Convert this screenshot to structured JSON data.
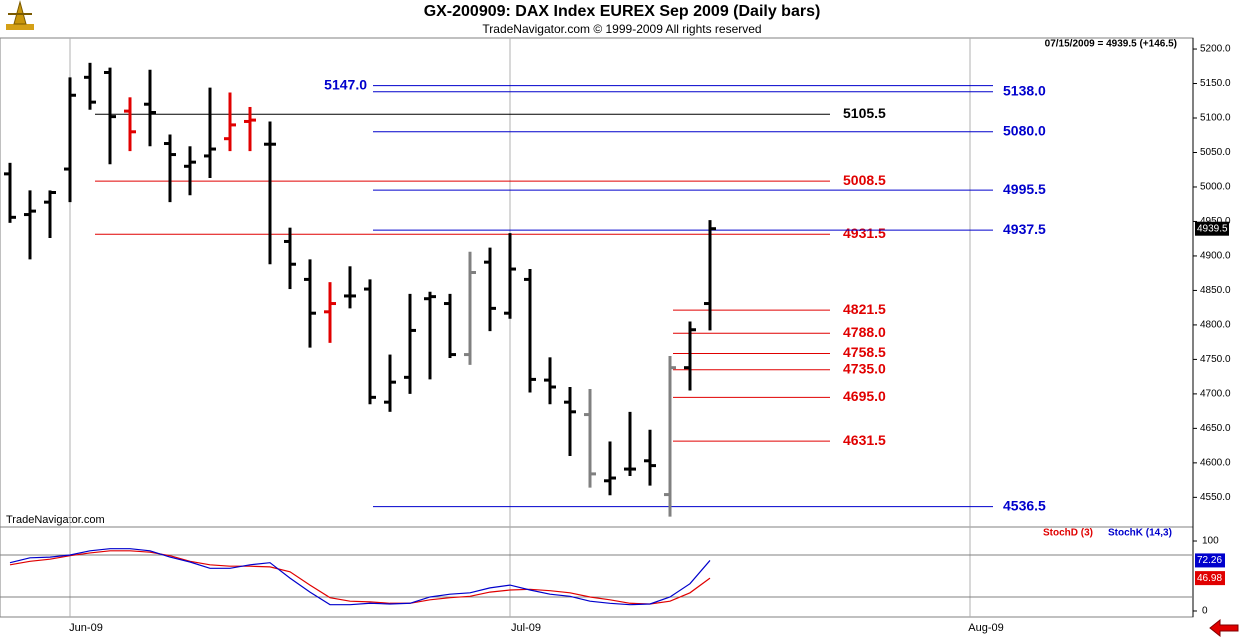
{
  "chart_data": [
    {
      "type": "ohlc",
      "title": "GX-200909:  DAX Index EUREX Sep 2009  (Daily bars)",
      "subtitle": "TradeNavigator.com © 1999-2009 All rights reserved",
      "header": "07/15/2009 = 4939.5 (+146.5)",
      "watermark": "TradeNavigator.com",
      "categories": [
        null,
        null,
        null,
        "Jun-09",
        null,
        null,
        null,
        null,
        null,
        null,
        null,
        null,
        null,
        null,
        null,
        null,
        null,
        null,
        null,
        null,
        null,
        null,
        null,
        null,
        null,
        "Jul-09",
        null,
        null,
        null,
        null,
        null,
        null,
        null,
        null,
        null,
        null,
        null,
        null,
        null,
        null,
        null,
        null,
        null,
        null,
        null,
        null,
        null,
        null,
        "Aug-09"
      ],
      "open": [
        5019,
        4960,
        4978,
        5026,
        5159,
        5166,
        5110,
        5120,
        5063,
        5030,
        5045,
        5070,
        5095,
        5062,
        4921,
        4866,
        4819,
        4842,
        4852,
        4688,
        4724,
        4838,
        4831,
        4757,
        4891,
        4817,
        4866,
        4720,
        4688,
        4670,
        4574,
        4591,
        4603,
        4554,
        4738,
        4831,
        null,
        null,
        null,
        null,
        null,
        null,
        null,
        null,
        null,
        null,
        null,
        null,
        null
      ],
      "high": [
        5035,
        4995,
        4995,
        5159,
        5180,
        5173,
        5130,
        5170,
        5076,
        5059,
        5144,
        5137,
        5116,
        5095,
        4941,
        4895,
        4862,
        4885,
        4866,
        4757,
        4845,
        4848,
        4845,
        4906,
        4912,
        4933,
        4881,
        4753,
        4710,
        4707,
        4631,
        4674,
        4648,
        4755,
        4805,
        4952,
        null,
        null,
        null,
        null,
        null,
        null,
        null,
        null,
        null,
        null,
        null,
        null,
        null
      ],
      "low": [
        4948,
        4895,
        4926,
        4978,
        5112,
        5033,
        5052,
        5059,
        4978,
        4988,
        5013,
        5052,
        5052,
        4888,
        4852,
        4767,
        4774,
        4824,
        4685,
        4674,
        4700,
        4721,
        4752,
        4742,
        4791,
        4809,
        4702,
        4685,
        4610,
        4564,
        4553,
        4581,
        4567,
        4522,
        4705,
        4792,
        null,
        null,
        null,
        null,
        null,
        null,
        null,
        null,
        null,
        null,
        null,
        null,
        null
      ],
      "close": [
        4956,
        4965,
        4992,
        5133,
        5123,
        5102,
        5080,
        5108,
        5047,
        5036,
        5055,
        5090,
        5097,
        5062,
        4888,
        4817,
        4831,
        4842,
        4695,
        4717,
        4792,
        4841,
        4757,
        4876,
        4824,
        4881,
        4721,
        4710,
        4674,
        4584,
        4578,
        4591,
        4596,
        4738,
        4793,
        4939.5,
        null,
        null,
        null,
        null,
        null,
        null,
        null,
        null,
        null,
        null,
        null,
        null,
        null
      ],
      "colors": [
        "#000000",
        "#000000",
        "#000000",
        "#000000",
        "#000000",
        "#000000",
        "#e00000",
        "#000000",
        "#000000",
        "#000000",
        "#000000",
        "#e00000",
        "#e00000",
        "#000000",
        "#000000",
        "#000000",
        "#e00000",
        "#000000",
        "#000000",
        "#000000",
        "#000000",
        "#000000",
        "#000000",
        "#808080",
        "#000000",
        "#000000",
        "#000000",
        "#000000",
        "#000000",
        "#808080",
        "#000000",
        "#000000",
        "#000000",
        "#808080",
        "#000000",
        "#000000",
        null,
        null,
        null,
        null,
        null,
        null,
        null,
        null,
        null,
        null,
        null,
        null,
        null
      ],
      "levels": [
        {
          "value": 5147,
          "label": "5147.0",
          "color": "#0000cc"
        },
        {
          "value": 5138,
          "label": "5138.0",
          "color": "#0000cc"
        },
        {
          "value": 5105.5,
          "label": "5105.5",
          "color": "#000000"
        },
        {
          "value": 5080,
          "label": "5080.0",
          "color": "#0000cc"
        },
        {
          "value": 5008.5,
          "label": "5008.5",
          "color": "#e00000"
        },
        {
          "value": 4995.5,
          "label": "4995.5",
          "color": "#0000cc"
        },
        {
          "value": 4931.5,
          "label": "4931.5",
          "color": "#e00000"
        },
        {
          "value": 4937.5,
          "label": "4937.5",
          "color": "#0000cc"
        },
        {
          "value": 4821.5,
          "label": "4821.5",
          "color": "#e00000"
        },
        {
          "value": 4788,
          "label": "4788.0",
          "color": "#e00000"
        },
        {
          "value": 4758.5,
          "label": "4758.5",
          "color": "#e00000"
        },
        {
          "value": 4735,
          "label": "4735.0",
          "color": "#e00000"
        },
        {
          "value": 4695,
          "label": "4695.0",
          "color": "#e00000"
        },
        {
          "value": 4631.5,
          "label": "4631.5",
          "color": "#e00000"
        },
        {
          "value": 4536.5,
          "label": "4536.5",
          "color": "#0000cc"
        }
      ],
      "ylim": [
        4507,
        5216
      ],
      "yticks": [
        {
          "value": 4550,
          "label": "4550.0"
        },
        {
          "value": 4600,
          "label": "4600.0"
        },
        {
          "value": 4650,
          "label": "4650.0"
        },
        {
          "value": 4700,
          "label": "4700.0"
        },
        {
          "value": 4750,
          "label": "4750.0"
        },
        {
          "value": 4800,
          "label": "4800.0"
        },
        {
          "value": 4850,
          "label": "4850.0"
        },
        {
          "value": 4900,
          "label": "4900.0"
        },
        {
          "value": 4950,
          "label": "4950.0"
        },
        {
          "value": 5000,
          "label": "5000.0"
        },
        {
          "value": 5050,
          "label": "5050.0"
        },
        {
          "value": 5100,
          "label": "5100.0"
        },
        {
          "value": 5150,
          "label": "5150.0"
        },
        {
          "value": 5200,
          "label": "5200.0"
        }
      ]
    },
    {
      "type": "line",
      "series": [
        {
          "name": "StochD (3)",
          "color": "#e00000",
          "values": [
            66,
            71,
            74,
            79,
            83,
            86,
            86,
            84,
            79,
            71,
            66,
            64,
            64,
            63,
            56,
            37,
            19,
            14,
            13,
            11,
            11,
            16,
            19,
            21,
            27,
            30,
            31,
            29,
            26,
            20,
            16,
            11,
            10,
            14,
            26,
            46.98,
            null,
            null,
            null,
            null,
            null,
            null,
            null,
            null,
            null,
            null,
            null,
            null,
            null
          ]
        },
        {
          "name": "StochK (14,3)",
          "color": "#0000cc",
          "values": [
            69,
            76,
            77,
            80,
            86,
            89,
            89,
            86,
            77,
            70,
            61,
            61,
            66,
            69,
            47,
            27,
            9,
            9,
            11,
            10,
            11,
            20,
            24,
            26,
            33,
            37,
            30,
            24,
            21,
            14,
            11,
            9,
            10,
            20,
            39,
            72.26,
            null,
            null,
            null,
            null,
            null,
            null,
            null,
            null,
            null,
            null,
            null,
            null,
            null
          ]
        }
      ],
      "ylim": [
        -8.6,
        118.6
      ],
      "yticks": [
        0,
        100
      ],
      "guides": [
        20,
        80
      ]
    }
  ]
}
